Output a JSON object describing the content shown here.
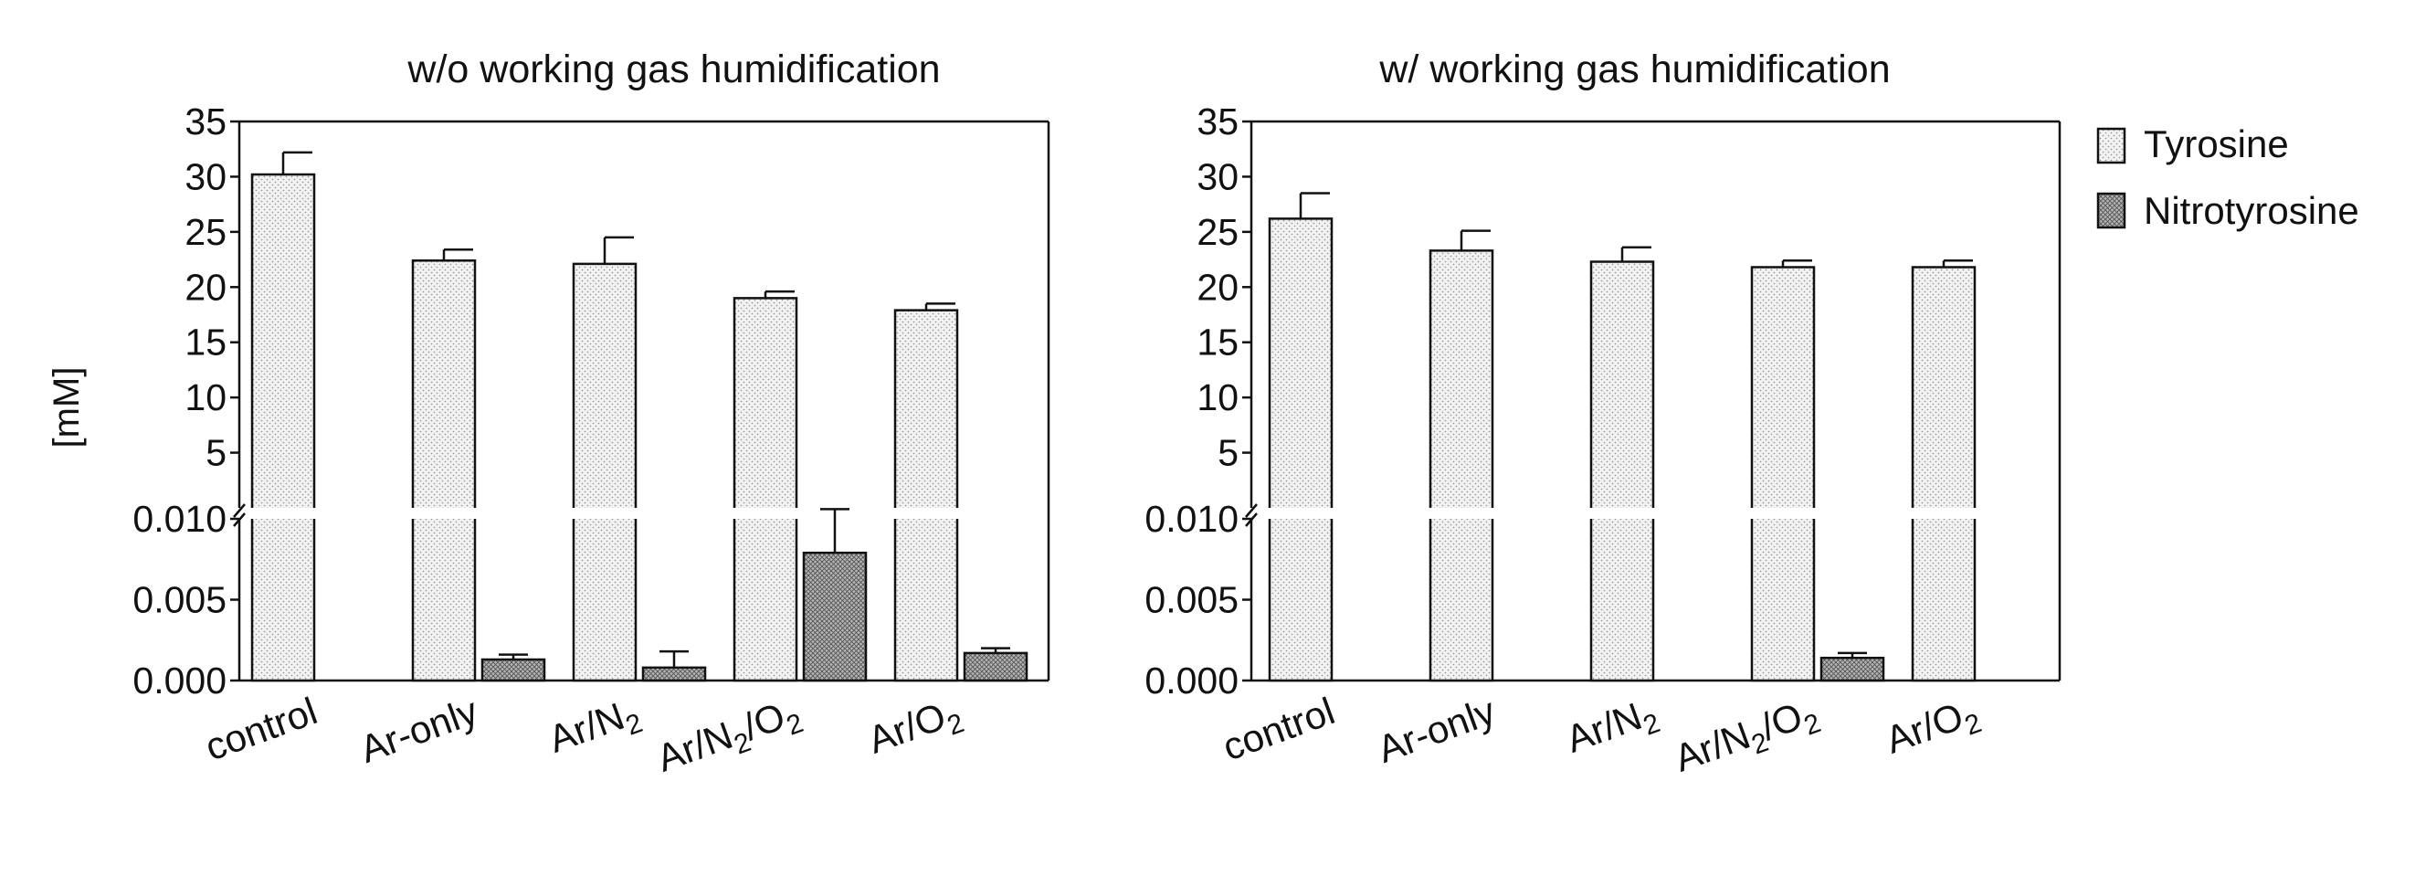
{
  "y_axis_label": "[mM]",
  "legend": [
    {
      "label": "Tyrosine",
      "pattern": "light-dots"
    },
    {
      "label": "Nitrotyrosine",
      "pattern": "dark-crosshatch"
    }
  ],
  "colors": {
    "axis": "#111111",
    "tyrosine_fill": "#f3f3f3",
    "tyrosine_dot": "#9a9a9a",
    "nitrotyrosine_fill": "#b4b4b4",
    "nitrotyrosine_line": "#555555"
  },
  "chart_data": [
    {
      "type": "bar",
      "title": "w/o working gas humidification",
      "ylabel": "[mM]",
      "categories": [
        "control",
        "Ar-only",
        "Ar/N2",
        "Ar/N2/O2",
        "Ar/O2"
      ],
      "category_labels": [
        {
          "parts": [
            {
              "t": "control"
            }
          ]
        },
        {
          "parts": [
            {
              "t": "Ar-only"
            }
          ]
        },
        {
          "parts": [
            {
              "t": "Ar/N"
            },
            {
              "t": "2",
              "sub": true
            }
          ]
        },
        {
          "parts": [
            {
              "t": "Ar/N"
            },
            {
              "t": "2",
              "sub": true
            },
            {
              "t": "/O"
            },
            {
              "t": "2",
              "sub": true
            }
          ]
        },
        {
          "parts": [
            {
              "t": "Ar/O"
            },
            {
              "t": "2",
              "sub": true
            }
          ]
        }
      ],
      "broken_axis": {
        "lower": {
          "range": [
            0,
            0.01
          ],
          "ticks": [
            "0.000",
            "0.005",
            "0.010"
          ]
        },
        "upper": {
          "range": [
            0,
            35
          ],
          "ticks": [
            "5",
            "10",
            "15",
            "20",
            "25",
            "30",
            "35"
          ]
        }
      },
      "series": [
        {
          "name": "Tyrosine",
          "axis": "upper",
          "values": [
            30.2,
            22.4,
            22.1,
            19.0,
            17.9
          ],
          "errors": [
            2.0,
            1.0,
            2.4,
            0.6,
            0.6
          ]
        },
        {
          "name": "Nitrotyrosine",
          "axis": "lower",
          "values": [
            null,
            0.0013,
            0.0008,
            0.0079,
            0.0017
          ],
          "errors": [
            null,
            0.0003,
            0.001,
            0.0027,
            0.0003
          ]
        }
      ]
    },
    {
      "type": "bar",
      "title": "w/ working gas humidification",
      "ylabel": "",
      "categories": [
        "control",
        "Ar-only",
        "Ar/N2",
        "Ar/N2/O2",
        "Ar/O2"
      ],
      "category_labels": [
        {
          "parts": [
            {
              "t": "control"
            }
          ]
        },
        {
          "parts": [
            {
              "t": "Ar-only"
            }
          ]
        },
        {
          "parts": [
            {
              "t": "Ar/N"
            },
            {
              "t": "2",
              "sub": true
            }
          ]
        },
        {
          "parts": [
            {
              "t": "Ar/N"
            },
            {
              "t": "2",
              "sub": true
            },
            {
              "t": "/O"
            },
            {
              "t": "2",
              "sub": true
            }
          ]
        },
        {
          "parts": [
            {
              "t": "Ar/O"
            },
            {
              "t": "2",
              "sub": true
            }
          ]
        }
      ],
      "broken_axis": {
        "lower": {
          "range": [
            0,
            0.01
          ],
          "ticks": [
            "0.000",
            "0.005",
            "0.010"
          ]
        },
        "upper": {
          "range": [
            0,
            35
          ],
          "ticks": [
            "5",
            "10",
            "15",
            "20",
            "25",
            "30",
            "35"
          ]
        }
      },
      "series": [
        {
          "name": "Tyrosine",
          "axis": "upper",
          "values": [
            26.2,
            23.3,
            22.3,
            21.8,
            21.8
          ],
          "errors": [
            2.3,
            1.8,
            1.3,
            0.6,
            0.6
          ]
        },
        {
          "name": "Nitrotyrosine",
          "axis": "lower",
          "values": [
            null,
            null,
            null,
            0.0014,
            null
          ],
          "errors": [
            null,
            null,
            null,
            0.0003,
            null
          ]
        }
      ]
    }
  ]
}
